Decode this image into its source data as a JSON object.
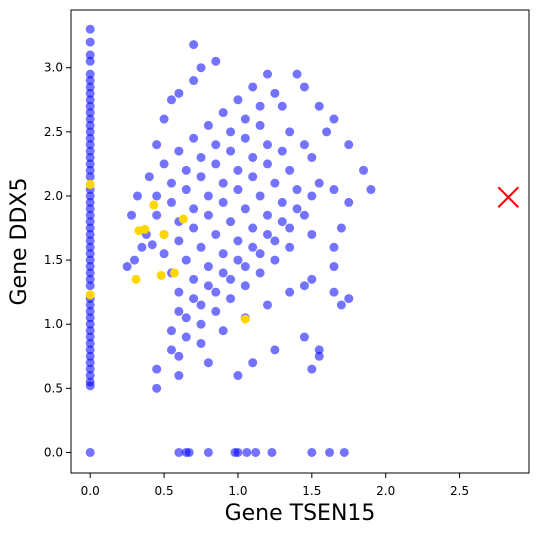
{
  "chart_data": {
    "type": "scatter",
    "xlabel": "Gene TSEN15",
    "ylabel": "Gene DDX5",
    "xlim": [
      -0.13,
      2.97
    ],
    "ylim": [
      -0.16,
      3.45
    ],
    "xticks": [
      "0.0",
      "0.5",
      "1.0",
      "1.5",
      "2.0",
      "2.5"
    ],
    "yticks": [
      "0.0",
      "0.5",
      "1.0",
      "1.5",
      "2.0",
      "2.5",
      "3.0"
    ],
    "grid": false,
    "legend": "none",
    "colors": {
      "main": "#0000ff",
      "highlight": "#ffd700",
      "marker": "#ff0000"
    },
    "series": [
      {
        "role": "main",
        "color": "#0000ff",
        "opacity": 0.55,
        "points": [
          [
            0.0,
            3.3
          ],
          [
            0.0,
            3.2
          ],
          [
            0.0,
            3.1
          ],
          [
            0.0,
            3.05
          ],
          [
            0.0,
            2.95
          ],
          [
            0.0,
            2.9
          ],
          [
            0.0,
            2.85
          ],
          [
            0.0,
            2.8
          ],
          [
            0.0,
            2.75
          ],
          [
            0.0,
            2.7
          ],
          [
            0.0,
            2.65
          ],
          [
            0.0,
            2.6
          ],
          [
            0.0,
            2.55
          ],
          [
            0.0,
            2.5
          ],
          [
            0.0,
            2.45
          ],
          [
            0.0,
            2.4
          ],
          [
            0.0,
            2.35
          ],
          [
            0.0,
            2.3
          ],
          [
            0.0,
            2.25
          ],
          [
            0.0,
            2.2
          ],
          [
            0.0,
            2.15
          ],
          [
            0.0,
            2.05
          ],
          [
            0.0,
            2.0
          ],
          [
            0.0,
            1.95
          ],
          [
            0.0,
            1.9
          ],
          [
            0.0,
            1.85
          ],
          [
            0.0,
            1.8
          ],
          [
            0.0,
            1.75
          ],
          [
            0.0,
            1.7
          ],
          [
            0.0,
            1.65
          ],
          [
            0.0,
            1.6
          ],
          [
            0.0,
            1.55
          ],
          [
            0.0,
            1.5
          ],
          [
            0.0,
            1.45
          ],
          [
            0.0,
            1.4
          ],
          [
            0.0,
            1.35
          ],
          [
            0.0,
            1.3
          ],
          [
            0.0,
            1.2
          ],
          [
            0.0,
            1.15
          ],
          [
            0.0,
            1.1
          ],
          [
            0.0,
            1.05
          ],
          [
            0.0,
            1.0
          ],
          [
            0.0,
            0.95
          ],
          [
            0.0,
            0.9
          ],
          [
            0.0,
            0.85
          ],
          [
            0.0,
            0.8
          ],
          [
            0.0,
            0.75
          ],
          [
            0.0,
            0.7
          ],
          [
            0.0,
            0.65
          ],
          [
            0.0,
            0.6
          ],
          [
            0.0,
            0.55
          ],
          [
            0.0,
            0.52
          ],
          [
            0.0,
            0.0
          ],
          [
            0.4,
            2.15
          ],
          [
            0.5,
            2.25
          ],
          [
            0.6,
            2.35
          ],
          [
            0.7,
            2.45
          ],
          [
            0.8,
            2.55
          ],
          [
            0.9,
            2.65
          ],
          [
            1.0,
            2.75
          ],
          [
            1.1,
            2.85
          ],
          [
            1.2,
            2.95
          ],
          [
            0.45,
            2.0
          ],
          [
            0.55,
            2.1
          ],
          [
            0.65,
            2.2
          ],
          [
            0.75,
            2.3
          ],
          [
            0.85,
            2.4
          ],
          [
            0.95,
            2.5
          ],
          [
            1.05,
            2.6
          ],
          [
            1.15,
            2.7
          ],
          [
            1.25,
            2.8
          ],
          [
            0.45,
            1.85
          ],
          [
            0.55,
            1.95
          ],
          [
            0.65,
            2.05
          ],
          [
            0.75,
            2.15
          ],
          [
            0.85,
            2.25
          ],
          [
            0.95,
            2.35
          ],
          [
            1.05,
            2.45
          ],
          [
            1.15,
            2.55
          ],
          [
            1.3,
            2.7
          ],
          [
            0.5,
            1.7
          ],
          [
            0.6,
            1.8
          ],
          [
            0.7,
            1.9
          ],
          [
            0.8,
            2.0
          ],
          [
            0.9,
            2.1
          ],
          [
            1.0,
            2.2
          ],
          [
            1.1,
            2.3
          ],
          [
            1.2,
            2.4
          ],
          [
            1.35,
            2.5
          ],
          [
            0.5,
            1.55
          ],
          [
            0.6,
            1.65
          ],
          [
            0.7,
            1.75
          ],
          [
            0.8,
            1.85
          ],
          [
            0.9,
            1.95
          ],
          [
            1.0,
            2.05
          ],
          [
            1.1,
            2.15
          ],
          [
            1.2,
            2.25
          ],
          [
            1.3,
            2.35
          ],
          [
            1.45,
            2.4
          ],
          [
            0.55,
            1.4
          ],
          [
            0.65,
            1.5
          ],
          [
            0.75,
            1.6
          ],
          [
            0.85,
            1.7
          ],
          [
            0.95,
            1.8
          ],
          [
            1.05,
            1.9
          ],
          [
            1.15,
            2.0
          ],
          [
            1.25,
            2.1
          ],
          [
            1.35,
            2.2
          ],
          [
            1.5,
            2.3
          ],
          [
            0.6,
            1.25
          ],
          [
            0.7,
            1.35
          ],
          [
            0.8,
            1.45
          ],
          [
            0.9,
            1.55
          ],
          [
            1.0,
            1.65
          ],
          [
            1.1,
            1.75
          ],
          [
            1.2,
            1.85
          ],
          [
            1.3,
            1.95
          ],
          [
            1.4,
            2.05
          ],
          [
            1.55,
            2.1
          ],
          [
            0.6,
            1.1
          ],
          [
            0.7,
            1.2
          ],
          [
            0.8,
            1.3
          ],
          [
            0.9,
            1.4
          ],
          [
            1.0,
            1.5
          ],
          [
            1.1,
            1.6
          ],
          [
            1.2,
            1.7
          ],
          [
            1.3,
            1.8
          ],
          [
            1.4,
            1.9
          ],
          [
            1.5,
            2.0
          ],
          [
            1.65,
            2.05
          ],
          [
            0.55,
            0.95
          ],
          [
            0.65,
            1.05
          ],
          [
            0.75,
            1.15
          ],
          [
            0.85,
            1.25
          ],
          [
            0.95,
            1.35
          ],
          [
            1.05,
            1.45
          ],
          [
            1.15,
            1.55
          ],
          [
            1.25,
            1.65
          ],
          [
            1.35,
            1.75
          ],
          [
            1.45,
            1.85
          ],
          [
            0.55,
            0.8
          ],
          [
            0.65,
            0.9
          ],
          [
            0.75,
            1.0
          ],
          [
            0.85,
            1.1
          ],
          [
            0.95,
            1.2
          ],
          [
            1.05,
            1.3
          ],
          [
            1.15,
            1.4
          ],
          [
            1.25,
            1.5
          ],
          [
            1.35,
            1.6
          ],
          [
            1.5,
            1.7
          ],
          [
            0.45,
            0.65
          ],
          [
            0.6,
            0.75
          ],
          [
            0.75,
            0.85
          ],
          [
            0.9,
            0.95
          ],
          [
            1.05,
            1.05
          ],
          [
            1.2,
            1.15
          ],
          [
            1.35,
            1.25
          ],
          [
            1.5,
            1.35
          ],
          [
            1.65,
            1.45
          ],
          [
            0.45,
            0.5
          ],
          [
            0.6,
            0.6
          ],
          [
            0.8,
            0.7
          ],
          [
            1.0,
            0.6
          ],
          [
            1.1,
            0.7
          ],
          [
            1.25,
            0.8
          ],
          [
            1.45,
            0.9
          ],
          [
            1.55,
            0.75
          ],
          [
            1.7,
            1.15
          ],
          [
            0.3,
            1.5
          ],
          [
            0.35,
            1.6
          ],
          [
            0.38,
            1.7
          ],
          [
            0.42,
            1.62
          ],
          [
            0.28,
            1.85
          ],
          [
            0.32,
            2.0
          ],
          [
            0.25,
            1.45
          ],
          [
            0.45,
            2.4
          ],
          [
            0.5,
            2.6
          ],
          [
            0.55,
            2.75
          ],
          [
            0.6,
            2.8
          ],
          [
            0.7,
            2.9
          ],
          [
            0.75,
            3.0
          ],
          [
            0.7,
            3.18
          ],
          [
            0.85,
            3.05
          ],
          [
            1.4,
            2.95
          ],
          [
            1.45,
            2.85
          ],
          [
            1.55,
            2.7
          ],
          [
            1.65,
            2.6
          ],
          [
            1.75,
            2.4
          ],
          [
            1.85,
            2.2
          ],
          [
            1.9,
            2.05
          ],
          [
            1.6,
            2.5
          ],
          [
            1.75,
            1.95
          ],
          [
            1.7,
            1.75
          ],
          [
            1.65,
            1.6
          ],
          [
            1.45,
            1.3
          ],
          [
            1.65,
            1.25
          ],
          [
            1.75,
            1.2
          ],
          [
            1.55,
            0.8
          ],
          [
            1.5,
            0.65
          ],
          [
            0.6,
            0.0
          ],
          [
            0.65,
            0.0
          ],
          [
            0.67,
            0.0
          ],
          [
            0.8,
            0.0
          ],
          [
            0.98,
            0.0
          ],
          [
            1.0,
            0.0
          ],
          [
            1.06,
            0.0
          ],
          [
            1.12,
            0.0
          ],
          [
            1.23,
            0.0
          ],
          [
            1.5,
            0.0
          ],
          [
            1.62,
            0.0
          ],
          [
            1.72,
            0.0
          ]
        ]
      },
      {
        "role": "highlight",
        "color": "#ffd700",
        "opacity": 1,
        "points": [
          [
            0.0,
            2.09
          ],
          [
            0.0,
            1.23
          ],
          [
            0.37,
            1.74
          ],
          [
            0.33,
            1.73
          ],
          [
            0.43,
            1.93
          ],
          [
            0.5,
            1.7
          ],
          [
            0.63,
            1.82
          ],
          [
            0.31,
            1.35
          ],
          [
            0.48,
            1.38
          ],
          [
            0.57,
            1.4
          ],
          [
            1.05,
            1.04
          ]
        ]
      }
    ],
    "annotations": [
      {
        "type": "marker",
        "shape": "x",
        "x": 2.83,
        "y": 1.99,
        "color": "#ff0000"
      }
    ]
  }
}
